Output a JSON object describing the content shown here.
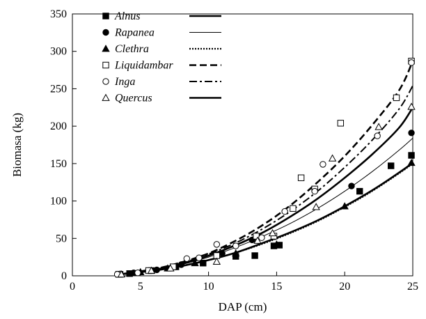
{
  "chart_data": {
    "type": "scatter",
    "title": "",
    "xlabel": "DAP (cm)",
    "ylabel": "Biomasa (kg)",
    "xlim": [
      0,
      25
    ],
    "ylim": [
      0,
      350
    ],
    "xticks": [
      0,
      5,
      10,
      15,
      20,
      25
    ],
    "yticks": [
      0,
      50,
      100,
      150,
      200,
      250,
      300,
      350
    ],
    "grid": false,
    "legend_position": "top-left",
    "series": [
      {
        "name": "Alnus",
        "marker": "filled-square",
        "line_style": "thick-solid",
        "points": [
          [
            3.5,
            2
          ],
          [
            4.2,
            3
          ],
          [
            5.8,
            7
          ],
          [
            7.6,
            12
          ],
          [
            9.6,
            17
          ],
          [
            12,
            26
          ],
          [
            13.4,
            27
          ],
          [
            14.8,
            40
          ],
          [
            15.2,
            41
          ],
          [
            21.1,
            113
          ],
          [
            23.4,
            147
          ],
          [
            24.9,
            161
          ]
        ],
        "fit": [
          [
            3.5,
            2
          ],
          [
            6,
            7
          ],
          [
            8,
            13
          ],
          [
            10,
            21
          ],
          [
            12,
            31
          ],
          [
            14,
            44
          ],
          [
            16,
            58
          ],
          [
            18,
            74
          ],
          [
            20,
            93
          ],
          [
            22,
            114
          ],
          [
            24,
            138
          ],
          [
            25,
            151
          ]
        ]
      },
      {
        "name": "Rapanea",
        "marker": "filled-circle",
        "line_style": "thin-solid",
        "points": [
          [
            4.5,
            4
          ],
          [
            6.2,
            8
          ],
          [
            8,
            15
          ],
          [
            11,
            30
          ],
          [
            13.2,
            48
          ],
          [
            15.2,
            41
          ],
          [
            20.5,
            120
          ],
          [
            24.9,
            191
          ]
        ],
        "fit": [
          [
            3.5,
            2
          ],
          [
            6,
            8
          ],
          [
            8,
            15
          ],
          [
            10,
            25
          ],
          [
            12,
            38
          ],
          [
            14,
            53
          ],
          [
            16,
            70
          ],
          [
            18,
            90
          ],
          [
            20,
            113
          ],
          [
            22,
            139
          ],
          [
            24,
            168
          ],
          [
            25,
            184
          ]
        ]
      },
      {
        "name": "Clethra",
        "marker": "filled-triangle",
        "line_style": "dotted",
        "points": [
          [
            3.5,
            2
          ],
          [
            5,
            5
          ],
          [
            7,
            10
          ],
          [
            9,
            17
          ],
          [
            12,
            30
          ],
          [
            15,
            42
          ],
          [
            20,
            93
          ],
          [
            24.9,
            151
          ]
        ],
        "fit": [
          [
            3.5,
            2
          ],
          [
            6,
            7
          ],
          [
            8,
            13
          ],
          [
            10,
            21
          ],
          [
            12,
            31
          ],
          [
            14,
            43
          ],
          [
            16,
            57
          ],
          [
            18,
            73
          ],
          [
            20,
            92
          ],
          [
            22,
            113
          ],
          [
            24,
            137
          ],
          [
            25,
            150
          ]
        ]
      },
      {
        "name": "Liquidambar",
        "marker": "open-square",
        "line_style": "dashed",
        "points": [
          [
            3.4,
            2
          ],
          [
            5.6,
            7
          ],
          [
            7.4,
            12
          ],
          [
            10.6,
            27
          ],
          [
            13.5,
            53
          ],
          [
            14.8,
            53
          ],
          [
            16.2,
            90
          ],
          [
            16.8,
            131
          ],
          [
            17.8,
            116
          ],
          [
            19.7,
            204
          ],
          [
            23.8,
            238
          ],
          [
            24.9,
            287
          ]
        ],
        "fit": [
          [
            3.5,
            2
          ],
          [
            6,
            9
          ],
          [
            8,
            18
          ],
          [
            10,
            30
          ],
          [
            12,
            47
          ],
          [
            14,
            68
          ],
          [
            16,
            94
          ],
          [
            18,
            125
          ],
          [
            20,
            160
          ],
          [
            22,
            201
          ],
          [
            24,
            248
          ],
          [
            25,
            287
          ]
        ]
      },
      {
        "name": "Inga",
        "marker": "open-circle",
        "line_style": "dash-dot",
        "points": [
          [
            3.3,
            2
          ],
          [
            4.8,
            4
          ],
          [
            8.4,
            23
          ],
          [
            9.3,
            24
          ],
          [
            10.6,
            42
          ],
          [
            12,
            40
          ],
          [
            13.9,
            51
          ],
          [
            15.6,
            86
          ],
          [
            17.8,
            113
          ],
          [
            18.4,
            149
          ],
          [
            22.4,
            187
          ],
          [
            24.9,
            285
          ]
        ],
        "fit": [
          [
            3.5,
            2
          ],
          [
            6,
            9
          ],
          [
            8,
            17
          ],
          [
            10,
            29
          ],
          [
            12,
            44
          ],
          [
            14,
            63
          ],
          [
            16,
            86
          ],
          [
            18,
            113
          ],
          [
            20,
            145
          ],
          [
            22,
            181
          ],
          [
            24,
            223
          ],
          [
            25,
            254
          ]
        ]
      },
      {
        "name": "Quercus",
        "marker": "open-triangle",
        "line_style": "thick-solid",
        "points": [
          [
            3.6,
            2
          ],
          [
            5.8,
            7
          ],
          [
            7.2,
            10
          ],
          [
            10.6,
            19
          ],
          [
            13.6,
            47
          ],
          [
            14.7,
            57
          ],
          [
            17.9,
            92
          ],
          [
            19.1,
            157
          ],
          [
            22.5,
            199
          ],
          [
            24.9,
            226
          ]
        ],
        "fit": [
          [
            3.5,
            2
          ],
          [
            6,
            8
          ],
          [
            8,
            16
          ],
          [
            10,
            27
          ],
          [
            12,
            41
          ],
          [
            14,
            58
          ],
          [
            16,
            79
          ],
          [
            18,
            103
          ],
          [
            20,
            131
          ],
          [
            22,
            162
          ],
          [
            24,
            198
          ],
          [
            25,
            225
          ]
        ]
      }
    ]
  }
}
